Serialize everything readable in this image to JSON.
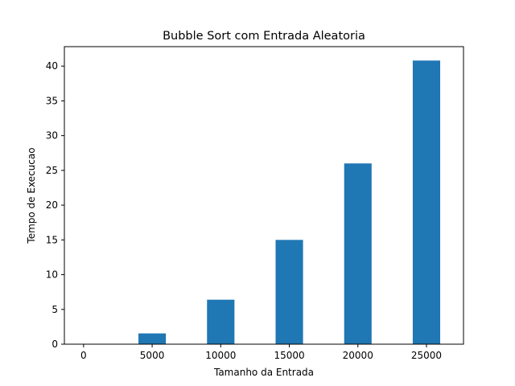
{
  "chart_data": {
    "type": "bar",
    "title": "Bubble Sort com Entrada Aleatoria",
    "xlabel": "Tamanho da Entrada",
    "ylabel": "Tempo de Execucao",
    "x": [
      5000,
      10000,
      15000,
      20000,
      25000
    ],
    "values": [
      1.55,
      6.4,
      15.0,
      26.0,
      40.8
    ],
    "bar_width": 2000,
    "xlim": [
      -1400,
      27700
    ],
    "ylim": [
      0,
      42.8
    ],
    "xticks": [
      0,
      5000,
      10000,
      15000,
      20000,
      25000
    ],
    "yticks": [
      0,
      5,
      10,
      15,
      20,
      25,
      30,
      35,
      40
    ],
    "bar_color": "#1f77b4",
    "grid": false,
    "legend": "none"
  }
}
